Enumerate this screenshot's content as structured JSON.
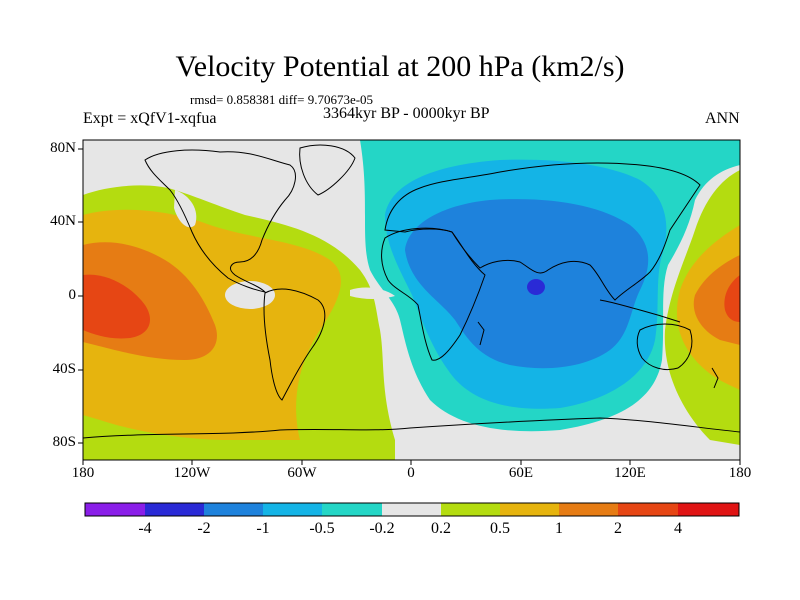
{
  "title": "Velocity Potential at 200 hPa (km2/s)",
  "stats_line": "rmsd= 0.858381 diff= 9.70673e-05",
  "experiment": "Expt = xQfV1-xqfua",
  "period": "3364kyr BP - 0000kyr BP",
  "season": "ANN",
  "y_axis": {
    "ticks": [
      "80N",
      "40N",
      "0",
      "40S",
      "80S"
    ],
    "values": [
      80,
      40,
      0,
      -40,
      -80
    ]
  },
  "x_axis": {
    "ticks": [
      "180",
      "120W",
      "60W",
      "0",
      "60E",
      "120E",
      "180"
    ],
    "values": [
      -180,
      -120,
      -60,
      0,
      60,
      120,
      180
    ]
  },
  "colorbar": {
    "labels": [
      "-4",
      "-2",
      "-1",
      "-0.5",
      "-0.2",
      "0.2",
      "0.5",
      "1",
      "2",
      "4"
    ],
    "colors": [
      "#8a1ee8",
      "#2a2ad6",
      "#1e82dc",
      "#14b4e6",
      "#24d6c6",
      "#e6e6e6",
      "#b4dc10",
      "#e6b40e",
      "#e67c14",
      "#e64614",
      "#e01414"
    ]
  },
  "colors": {
    "ocean_blue": "#1e82dc",
    "mid_blue": "#14b4e6",
    "teal": "#24d6c6",
    "neutral": "#e6e6e6",
    "yellow_green": "#b4dc10",
    "orange": "#e6b40e",
    "dark_orange": "#e67c14",
    "red": "#e64614",
    "deep_blue": "#2a2ad6"
  }
}
